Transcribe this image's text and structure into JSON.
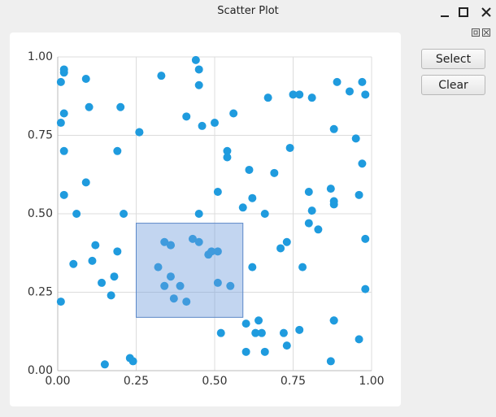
{
  "window": {
    "title": "Scatter Plot"
  },
  "buttons": [
    "Select",
    "Clear"
  ],
  "chart_data": {
    "type": "scatter",
    "color": "#1f9bde",
    "x": [
      0.02,
      0.02,
      0.01,
      0.09,
      0.02,
      0.01,
      0.1,
      0.2,
      0.02,
      0.26,
      0.26,
      0.19,
      0.09,
      0.02,
      0.06,
      0.21,
      0.12,
      0.05,
      0.11,
      0.19,
      0.18,
      0.14,
      0.17,
      0.01,
      0.23,
      0.15,
      0.24,
      0.33,
      0.44,
      0.45,
      0.45,
      0.41,
      0.46,
      0.5,
      0.56,
      0.54,
      0.54,
      0.67,
      0.75,
      0.77,
      0.81,
      0.89,
      0.93,
      0.97,
      0.98,
      0.88,
      0.95,
      0.74,
      0.61,
      0.51,
      0.69,
      0.62,
      0.59,
      0.66,
      0.45,
      0.87,
      0.88,
      0.88,
      0.96,
      0.97,
      0.8,
      0.81,
      0.83,
      0.8,
      0.73,
      0.71,
      0.78,
      0.62,
      0.98,
      0.98,
      0.34,
      0.36,
      0.36,
      0.43,
      0.45,
      0.48,
      0.49,
      0.51,
      0.32,
      0.36,
      0.34,
      0.39,
      0.37,
      0.41,
      0.51,
      0.55,
      0.52,
      0.6,
      0.64,
      0.63,
      0.65,
      0.66,
      0.72,
      0.73,
      0.77,
      0.6,
      0.88,
      0.88,
      0.87,
      0.96
    ],
    "values": [
      0.96,
      0.95,
      0.92,
      0.93,
      0.82,
      0.79,
      0.84,
      0.84,
      0.7,
      0.76,
      0.76,
      0.7,
      0.6,
      0.56,
      0.5,
      0.5,
      0.4,
      0.34,
      0.35,
      0.38,
      0.3,
      0.28,
      0.24,
      0.22,
      0.04,
      0.02,
      0.03,
      0.94,
      0.99,
      0.96,
      0.91,
      0.81,
      0.78,
      0.79,
      0.82,
      0.7,
      0.68,
      0.87,
      0.88,
      0.88,
      0.87,
      0.92,
      0.89,
      0.92,
      0.88,
      0.77,
      0.74,
      0.71,
      0.64,
      0.57,
      0.63,
      0.55,
      0.52,
      0.5,
      0.5,
      0.58,
      0.54,
      0.53,
      0.56,
      0.66,
      0.57,
      0.51,
      0.45,
      0.47,
      0.41,
      0.39,
      0.33,
      0.33,
      0.42,
      0.26,
      0.41,
      0.4,
      0.4,
      0.42,
      0.41,
      0.37,
      0.38,
      0.38,
      0.33,
      0.3,
      0.27,
      0.27,
      0.23,
      0.22,
      0.28,
      0.27,
      0.12,
      0.15,
      0.16,
      0.12,
      0.12,
      0.06,
      0.12,
      0.08,
      0.13,
      0.06,
      0.16,
      0.16,
      0.03,
      0.1
    ],
    "xlim": [
      0,
      1
    ],
    "ylim": [
      0,
      1
    ],
    "xticks": [
      {
        "value": 0,
        "label": "0.00"
      },
      0.25,
      {
        "value": 0.5,
        "label": "0.50"
      },
      0.75,
      {
        "value": 1,
        "label": "1.00"
      }
    ],
    "yticks": [
      {
        "value": 0,
        "label": "0.00"
      },
      0.25,
      {
        "value": 0.5,
        "label": "0.50"
      },
      0.75,
      {
        "value": 1,
        "label": "1.00"
      }
    ],
    "grid": true,
    "selection": {
      "xlim": [
        0.25,
        0.59
      ],
      "ylim": [
        0.17,
        0.47
      ]
    }
  }
}
